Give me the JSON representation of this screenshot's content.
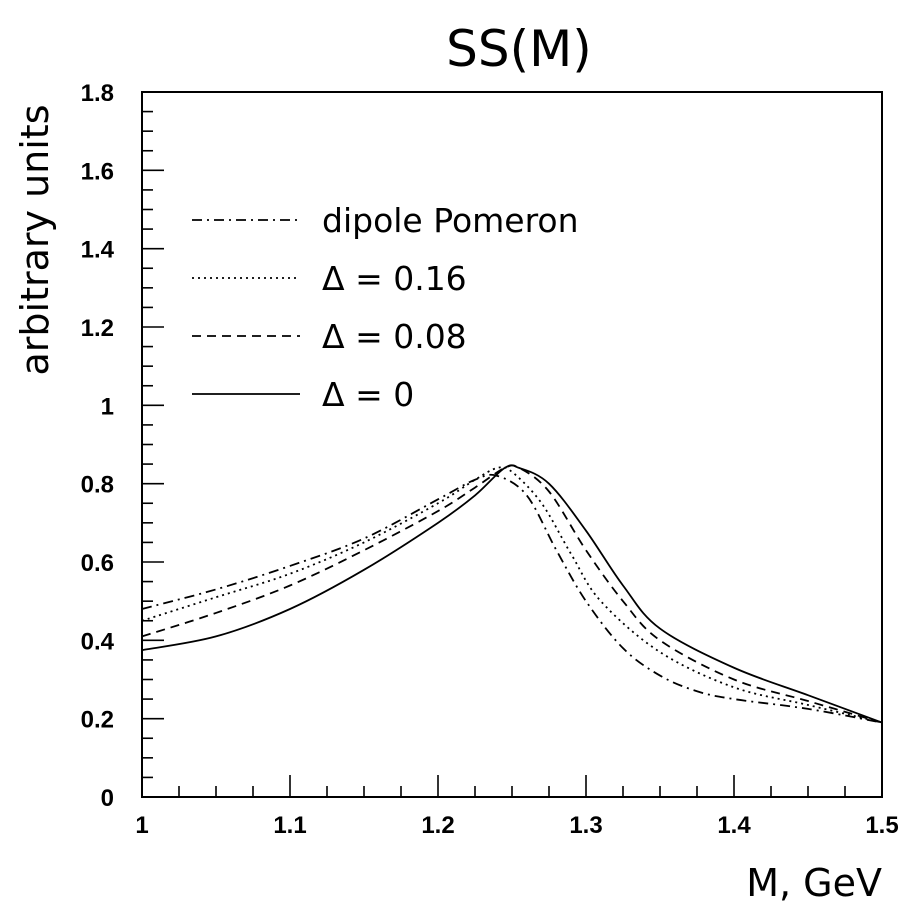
{
  "chart_data": {
    "type": "line",
    "title": "SS(M)",
    "xlabel": "M, GeV",
    "ylabel": "arbitrary units",
    "xlim": [
      1,
      1.5
    ],
    "ylim": [
      0,
      1.8
    ],
    "x_ticks": [
      "1",
      "1.1",
      "1.2",
      "1.3",
      "1.4",
      "1.5"
    ],
    "y_ticks": [
      "0",
      "0.2",
      "0.4",
      "0.6",
      "0.8",
      "1",
      "1.2",
      "1.4",
      "1.6",
      "1.8"
    ],
    "grid": false,
    "legend_position": "upper-left",
    "series": [
      {
        "name": "dipole Pomeron",
        "style": "dash-dot",
        "x": [
          1.0,
          1.05,
          1.1,
          1.15,
          1.2,
          1.225,
          1.24,
          1.26,
          1.28,
          1.3,
          1.325,
          1.35,
          1.375,
          1.4,
          1.45,
          1.5
        ],
        "y": [
          0.48,
          0.53,
          0.59,
          0.66,
          0.76,
          0.81,
          0.82,
          0.77,
          0.63,
          0.5,
          0.38,
          0.31,
          0.27,
          0.25,
          0.225,
          0.19
        ]
      },
      {
        "name": "Δ = 0.16",
        "style": "dotted",
        "x": [
          1.0,
          1.05,
          1.1,
          1.15,
          1.2,
          1.225,
          1.24,
          1.25,
          1.27,
          1.29,
          1.31,
          1.35,
          1.4,
          1.45,
          1.5
        ],
        "y": [
          0.45,
          0.51,
          0.57,
          0.65,
          0.75,
          0.81,
          0.84,
          0.83,
          0.75,
          0.62,
          0.5,
          0.37,
          0.28,
          0.235,
          0.19
        ]
      },
      {
        "name": "Δ = 0.08",
        "style": "dashed",
        "x": [
          1.0,
          1.05,
          1.1,
          1.15,
          1.2,
          1.225,
          1.245,
          1.255,
          1.275,
          1.3,
          1.325,
          1.35,
          1.4,
          1.45,
          1.5
        ],
        "y": [
          0.41,
          0.47,
          0.54,
          0.63,
          0.73,
          0.79,
          0.84,
          0.84,
          0.78,
          0.63,
          0.5,
          0.4,
          0.3,
          0.245,
          0.19
        ]
      },
      {
        "name": "Δ = 0",
        "style": "solid",
        "x": [
          1.0,
          1.05,
          1.1,
          1.15,
          1.2,
          1.225,
          1.245,
          1.255,
          1.275,
          1.3,
          1.325,
          1.35,
          1.4,
          1.45,
          1.5
        ],
        "y": [
          0.375,
          0.41,
          0.48,
          0.58,
          0.7,
          0.77,
          0.84,
          0.84,
          0.8,
          0.68,
          0.54,
          0.43,
          0.33,
          0.26,
          0.19
        ]
      }
    ]
  }
}
